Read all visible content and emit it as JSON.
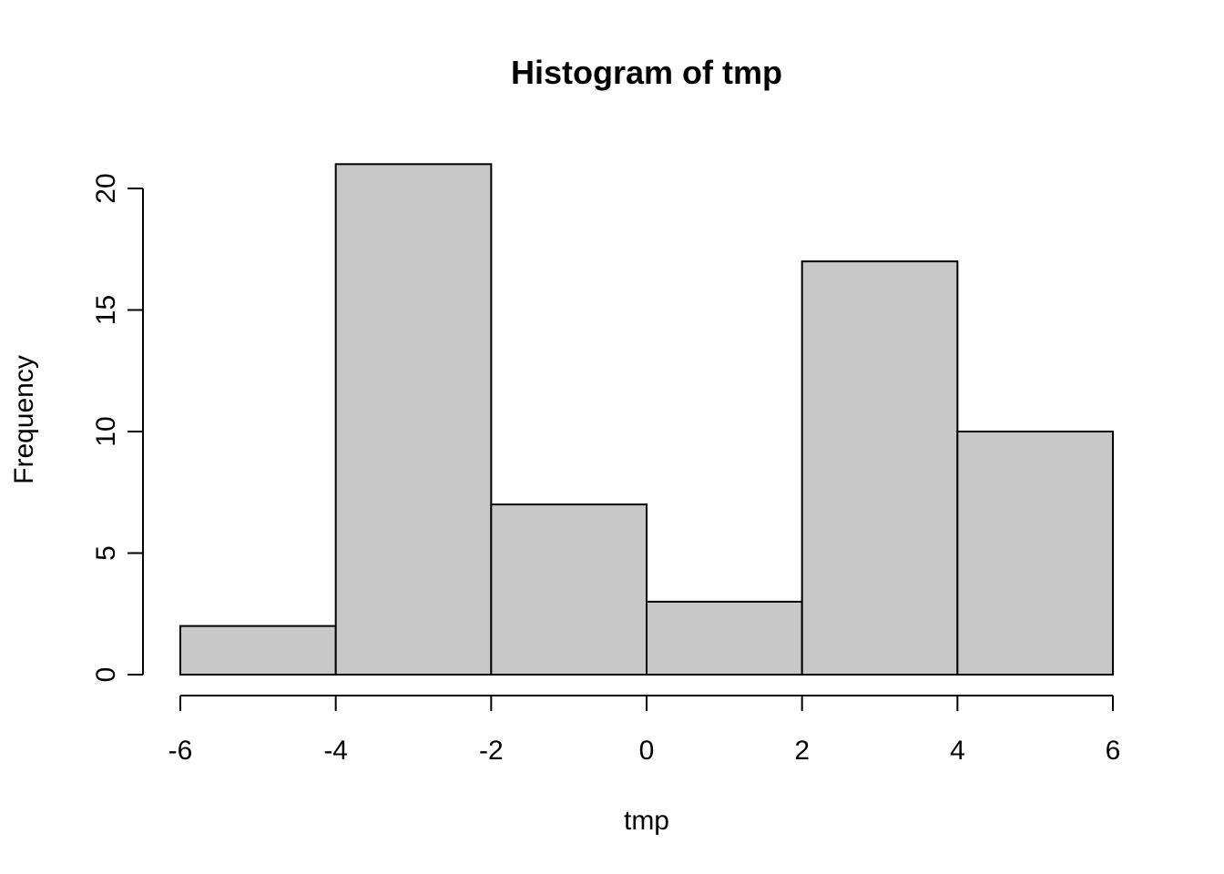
{
  "chart_data": {
    "type": "bar",
    "title": "Histogram of tmp",
    "xlabel": "tmp",
    "ylabel": "Frequency",
    "bins": [
      {
        "from": -6,
        "to": -4,
        "count": 2
      },
      {
        "from": -4,
        "to": -2,
        "count": 21
      },
      {
        "from": -2,
        "to": 0,
        "count": 7
      },
      {
        "from": 0,
        "to": 2,
        "count": 3
      },
      {
        "from": 2,
        "to": 4,
        "count": 17
      },
      {
        "from": 4,
        "to": 6,
        "count": 10
      }
    ],
    "xticks": [
      -6,
      -4,
      -2,
      0,
      2,
      4,
      6
    ],
    "yticks": [
      0,
      5,
      10,
      15,
      20
    ],
    "xlim": [
      -6,
      6
    ],
    "ylim": [
      0,
      20
    ],
    "bar_color": "#c8c8c8",
    "grid": false,
    "legend": "none"
  }
}
